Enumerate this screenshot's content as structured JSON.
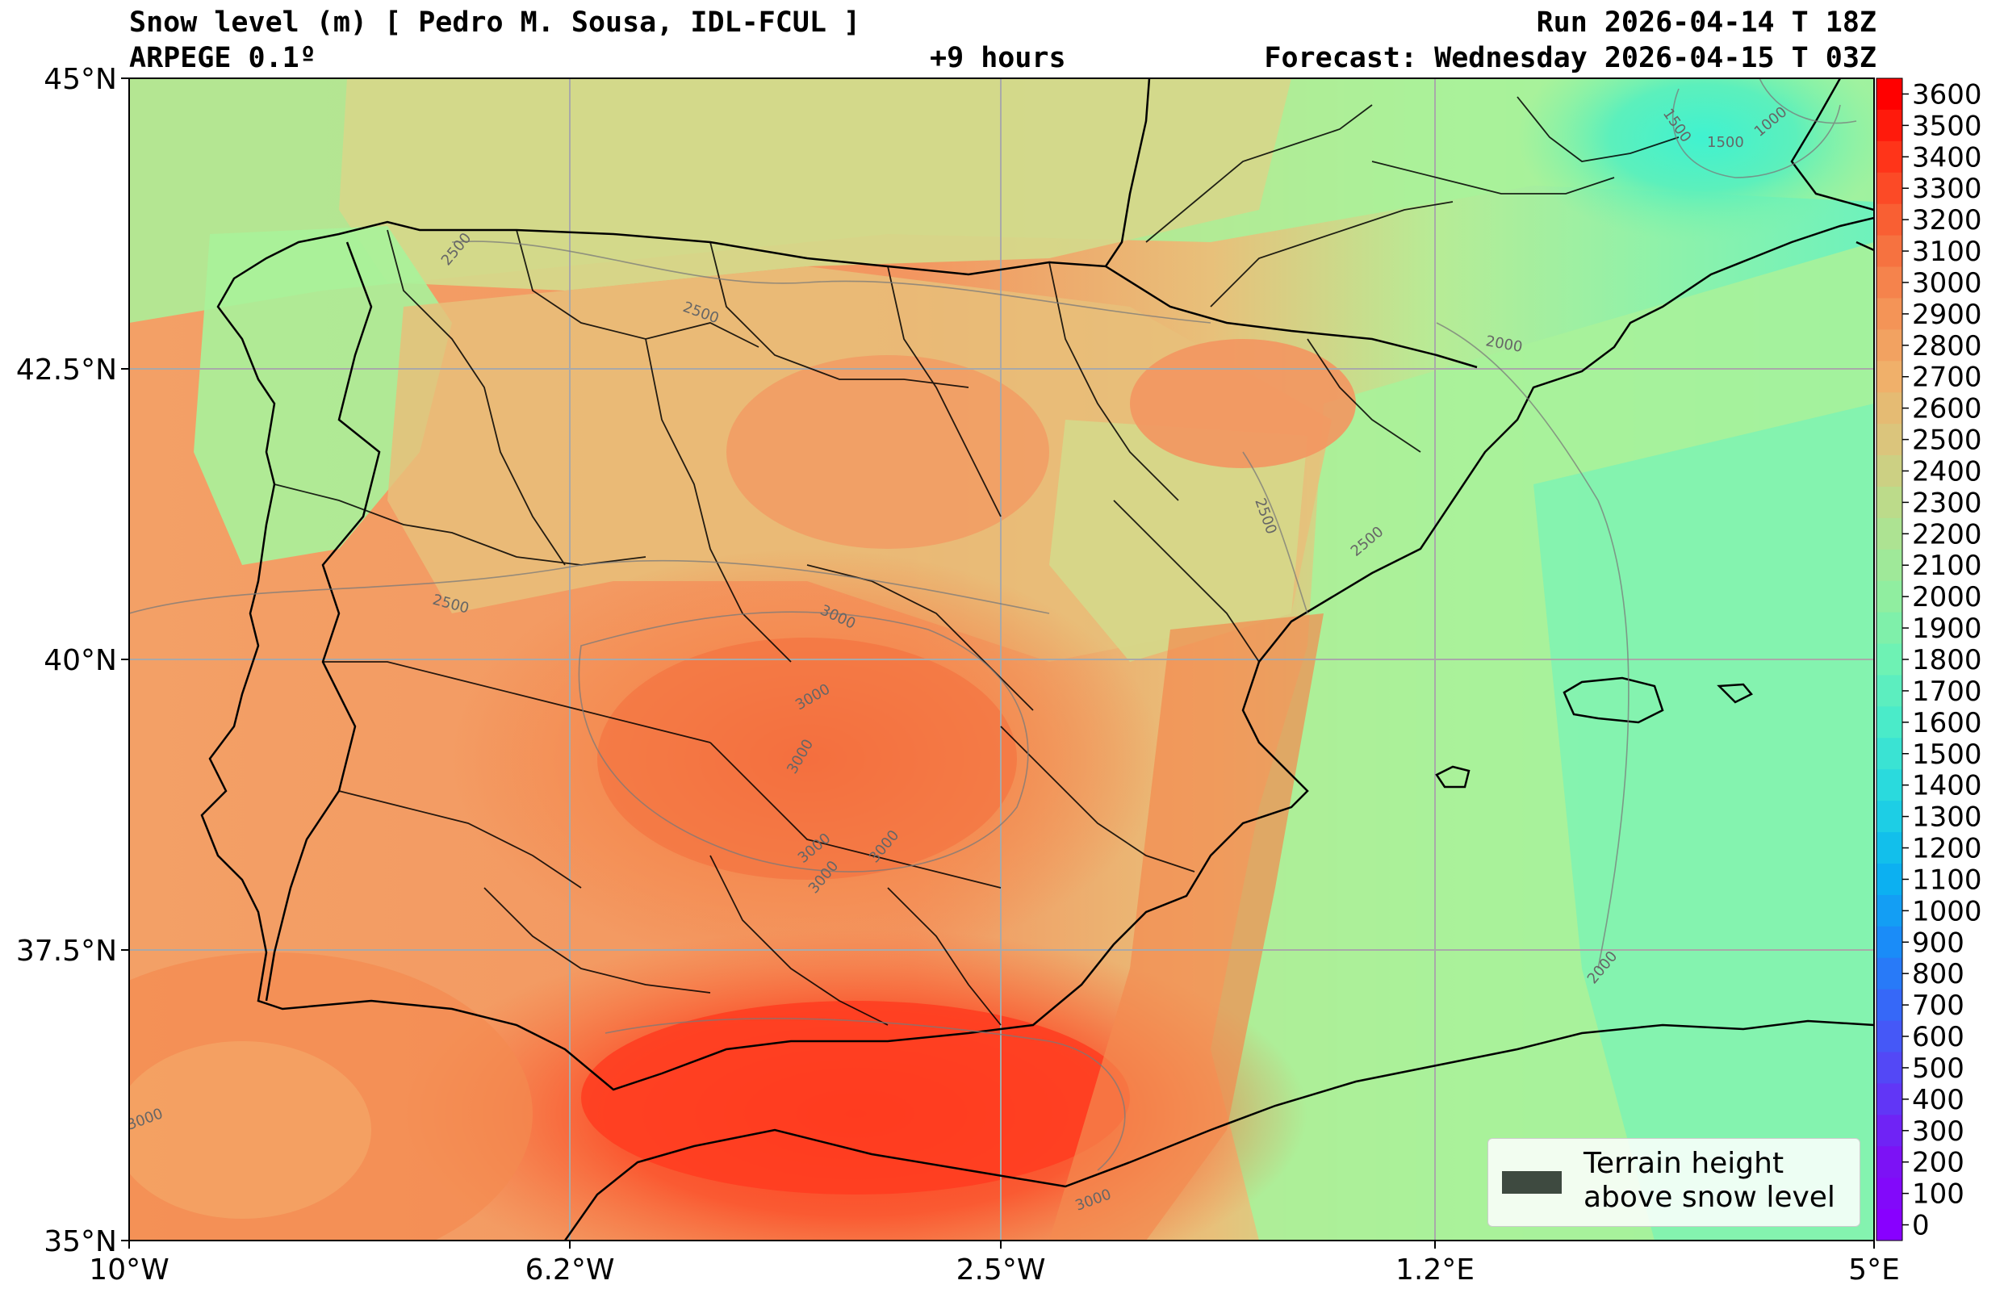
{
  "header": {
    "title_left": "Snow level (m) [ Pedro M. Sousa, IDL-FCUL ]",
    "title_right": "Run 2026-04-14 T 18Z",
    "subtitle_left": "ARPEGE 0.1º",
    "subtitle_center": "+9 hours",
    "subtitle_right": "Forecast: Wednesday 2026-04-15 T 03Z"
  },
  "axes": {
    "lon_ticks": [
      "10°W",
      "6.2°W",
      "2.5°W",
      "1.2°E",
      "5°E"
    ],
    "lat_ticks": [
      "45°N",
      "42.5°N",
      "40°N",
      "37.5°N",
      "35°N"
    ]
  },
  "colorbar": {
    "levels": [
      "3600",
      "3500",
      "3400",
      "3300",
      "3200",
      "3100",
      "3000",
      "2900",
      "2800",
      "2700",
      "2600",
      "2500",
      "2400",
      "2300",
      "2200",
      "2100",
      "2000",
      "1900",
      "1800",
      "1700",
      "1600",
      "1500",
      "1400",
      "1300",
      "1200",
      "1100",
      "1000",
      "900",
      "800",
      "700",
      "600",
      "500",
      "400",
      "300",
      "200",
      "100",
      "0"
    ]
  },
  "contour_labels": [
    "2500",
    "2500",
    "2500",
    "2500",
    "2500",
    "3000",
    "3000",
    "3000",
    "3000",
    "3000",
    "3000",
    "3000",
    "3000",
    "2000",
    "2000",
    "1500",
    "1500",
    "1000"
  ],
  "legend": {
    "line1": "Terrain height",
    "line2": "above snow level"
  },
  "colors": {
    "hot": "#ff3c20",
    "warm": "#f48a50",
    "mild": "#f3b070",
    "olive": "#d5d88a",
    "green": "#a8f29a",
    "cyan": "#4df2c8",
    "terrain_swatch": "#3e4a40"
  }
}
